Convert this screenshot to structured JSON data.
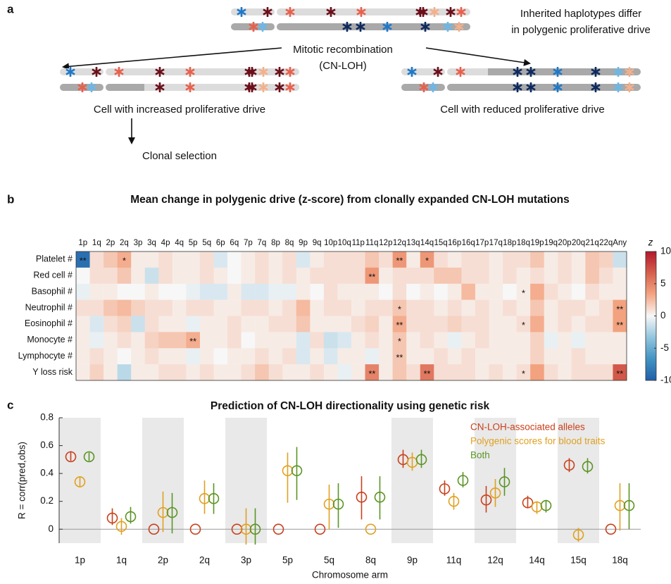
{
  "panel_labels": [
    "a",
    "b",
    "c"
  ],
  "diagram": {
    "haplotype_note": [
      "Inherited haplotypes differ",
      "in polygenic proliferative drive"
    ],
    "recombination": [
      "Mitotic recombination",
      "(CN-LOH)"
    ],
    "left_cell": "Cell with increased proliferative drive",
    "right_cell": "Cell with reduced proliferative drive",
    "selection": "Clonal selection"
  },
  "chart_data": [
    {
      "type": "heatmap",
      "title": "Mean change in polygenic drive (z-score) from clonally expanded CN-LOH mutations",
      "categories": [
        "1p",
        "1q",
        "2p",
        "2q",
        "3p",
        "3q",
        "4p",
        "4q",
        "5p",
        "5q",
        "6p",
        "6q",
        "7p",
        "7q",
        "8p",
        "8q",
        "9p",
        "9q",
        "10p",
        "10q",
        "11p",
        "11q",
        "12p",
        "12q",
        "13q",
        "14q",
        "15q",
        "16p",
        "16q",
        "17p",
        "17q",
        "18p",
        "18q",
        "19p",
        "19q",
        "20p",
        "20q",
        "21q",
        "22q",
        "Any"
      ],
      "series": [
        {
          "name": "Platelet #",
          "values": [
            -9,
            1,
            2,
            3,
            0.5,
            0.5,
            1,
            0.5,
            0.5,
            1,
            -1,
            0,
            0.5,
            1,
            0.5,
            1,
            -1,
            0.5,
            1,
            1,
            1,
            2,
            1,
            4,
            0.5,
            4,
            1,
            0.5,
            1,
            1,
            0.5,
            1,
            1,
            2,
            0.5,
            1,
            0.5,
            2,
            1.5,
            -1.5
          ],
          "value_labels": [
            "**",
            null,
            null,
            "*",
            null,
            null,
            null,
            null,
            null,
            null,
            null,
            null,
            null,
            null,
            null,
            null,
            null,
            null,
            null,
            null,
            null,
            null,
            null,
            "**",
            null,
            "*",
            null,
            null,
            null,
            null,
            null,
            null,
            null,
            null,
            null,
            null,
            null,
            null,
            null,
            null
          ]
        },
        {
          "name": "Red cell #",
          "values": [
            0,
            1,
            1,
            2,
            0.5,
            -1.5,
            1,
            0.5,
            0.5,
            1,
            0.5,
            0,
            0.5,
            1,
            0.5,
            1,
            0.5,
            1,
            1,
            1,
            1,
            4,
            0.5,
            1,
            1,
            1,
            2,
            2,
            1,
            1,
            0.5,
            1,
            0.5,
            1,
            0.5,
            1,
            0.5,
            2,
            1,
            0.5
          ],
          "value_labels": [
            null,
            null,
            null,
            null,
            null,
            null,
            null,
            null,
            null,
            null,
            null,
            null,
            null,
            null,
            null,
            null,
            null,
            null,
            null,
            null,
            null,
            "**",
            null,
            null,
            null,
            null,
            null,
            null,
            null,
            null,
            null,
            null,
            null,
            null,
            null,
            null,
            null,
            null,
            null,
            null
          ]
        },
        {
          "name": "Basophil #",
          "values": [
            -0.5,
            0.5,
            0.5,
            0,
            0,
            0.5,
            0,
            0,
            -0.5,
            -1,
            -1,
            0.5,
            -1,
            -1,
            -0.5,
            -0.5,
            0.5,
            0,
            1,
            0.5,
            0.5,
            0.5,
            0,
            1,
            0,
            0.5,
            0,
            0.5,
            2.5,
            0.5,
            0.5,
            0,
            0.5,
            3,
            1,
            0.5,
            0,
            1,
            0.5,
            0.5
          ],
          "value_labels": [
            null,
            null,
            null,
            null,
            null,
            null,
            null,
            null,
            null,
            null,
            null,
            null,
            null,
            null,
            null,
            null,
            null,
            null,
            null,
            null,
            null,
            null,
            null,
            null,
            null,
            null,
            null,
            null,
            null,
            null,
            null,
            null,
            "*",
            null,
            null,
            null,
            null,
            null,
            null,
            null
          ]
        },
        {
          "name": "Neutrophil #",
          "values": [
            1,
            1,
            2,
            2.5,
            1.5,
            1,
            1,
            0.5,
            1,
            1,
            0.5,
            0.5,
            1,
            1,
            0.5,
            1,
            2.5,
            0.5,
            1,
            1,
            0.5,
            1,
            1,
            2,
            1,
            1,
            0.5,
            1,
            0.5,
            1,
            0.5,
            1,
            0.5,
            2,
            0.5,
            1,
            1,
            0.5,
            1,
            3.5
          ],
          "value_labels": [
            null,
            null,
            null,
            null,
            null,
            null,
            null,
            null,
            null,
            null,
            null,
            null,
            null,
            null,
            null,
            null,
            null,
            null,
            null,
            null,
            null,
            null,
            null,
            "*",
            null,
            null,
            null,
            null,
            null,
            null,
            null,
            null,
            null,
            null,
            null,
            null,
            null,
            null,
            null,
            "**"
          ]
        },
        {
          "name": "Eosinophil #",
          "values": [
            0.5,
            -1,
            1,
            1.5,
            -1.5,
            1,
            0.5,
            0.5,
            -0.5,
            0.5,
            0.5,
            1,
            0.5,
            0.5,
            1,
            1,
            2,
            0.5,
            0.5,
            0.5,
            1,
            1.5,
            0.5,
            3,
            1,
            1,
            1,
            1.5,
            1,
            1,
            0.5,
            0.5,
            1,
            3,
            0.5,
            1,
            0.5,
            1,
            1,
            3.5
          ],
          "value_labels": [
            null,
            null,
            null,
            null,
            null,
            null,
            null,
            null,
            null,
            null,
            null,
            null,
            null,
            null,
            null,
            null,
            null,
            null,
            null,
            null,
            null,
            null,
            null,
            "**",
            null,
            null,
            null,
            null,
            null,
            null,
            null,
            null,
            "*",
            null,
            null,
            null,
            null,
            null,
            null,
            "**"
          ]
        },
        {
          "name": "Monocyte #",
          "values": [
            0.5,
            -0.5,
            0.5,
            1,
            0.5,
            1.5,
            2,
            2,
            3,
            0.5,
            0.5,
            1,
            0,
            0.5,
            0.5,
            0.5,
            -1,
            1,
            -1.5,
            -1,
            0.5,
            1,
            0.5,
            2,
            0.5,
            1,
            0.5,
            -0.5,
            0.5,
            1,
            0.5,
            0.5,
            0.5,
            1.5,
            -0.5,
            0.5,
            -0.5,
            0.5,
            0.5,
            0.5
          ],
          "value_labels": [
            null,
            null,
            null,
            null,
            null,
            null,
            null,
            null,
            "**",
            null,
            null,
            null,
            null,
            null,
            null,
            null,
            null,
            null,
            null,
            null,
            null,
            null,
            null,
            "*",
            null,
            null,
            null,
            null,
            null,
            null,
            null,
            null,
            null,
            null,
            null,
            null,
            null,
            null,
            null,
            null
          ]
        },
        {
          "name": "Lymphocyte #",
          "values": [
            0.5,
            1,
            0.5,
            0,
            0.5,
            1,
            0.5,
            0.5,
            -0.5,
            0.5,
            0,
            0.5,
            0.5,
            1,
            0.5,
            1,
            -1,
            0.5,
            -1,
            0.5,
            0.5,
            -0.5,
            0.5,
            2,
            0.5,
            0.5,
            1,
            0.5,
            1,
            0.5,
            0.5,
            0.5,
            0.5,
            1.5,
            0.5,
            0.5,
            1,
            0.5,
            0.5,
            0.5
          ],
          "value_labels": [
            null,
            null,
            null,
            null,
            null,
            null,
            null,
            null,
            null,
            null,
            null,
            null,
            null,
            null,
            null,
            null,
            null,
            null,
            null,
            null,
            null,
            null,
            null,
            "**",
            null,
            null,
            null,
            null,
            null,
            null,
            null,
            null,
            null,
            null,
            null,
            null,
            null,
            null,
            null,
            null
          ]
        },
        {
          "name": "Y loss risk",
          "values": [
            0.5,
            1.5,
            0.5,
            -2,
            0.5,
            0.5,
            1,
            1,
            0.5,
            1,
            0.5,
            0.5,
            1,
            2,
            1,
            0.5,
            0.5,
            1,
            0.5,
            -0.5,
            0.5,
            5,
            0.5,
            2,
            1,
            5.5,
            1,
            1,
            1,
            0.5,
            1,
            0.5,
            1,
            3.5,
            1,
            0.5,
            1,
            1,
            1,
            7
          ],
          "value_labels": [
            null,
            null,
            null,
            null,
            null,
            null,
            null,
            null,
            null,
            null,
            null,
            null,
            null,
            null,
            null,
            null,
            null,
            null,
            null,
            null,
            null,
            "**",
            null,
            null,
            null,
            "**",
            null,
            null,
            null,
            null,
            null,
            null,
            "*",
            null,
            null,
            null,
            null,
            null,
            null,
            "**"
          ]
        }
      ],
      "zlabel": "z",
      "zlim": [
        -10,
        10
      ],
      "zticks": [
        -10,
        -5,
        0,
        5,
        10
      ],
      "colormap": [
        "#1f5fa8",
        "#4393c3",
        "#92c5de",
        "#f7f7f7",
        "#f4a582",
        "#d6604d",
        "#b2182b"
      ]
    },
    {
      "type": "errorbar",
      "title": "Prediction of CN-LOH directionality using genetic risk",
      "xlabel": "Chromosome arm",
      "ylabel": "R = corr(pred,obs)",
      "categories": [
        "1p",
        "1q",
        "2p",
        "2q",
        "3p",
        "5p",
        "5q",
        "8q",
        "9p",
        "11q",
        "12q",
        "14q",
        "15q",
        "18q"
      ],
      "series": [
        {
          "name": "CN-LOH-associated alleles",
          "color": "#c8401c",
          "values": [
            0.52,
            0.08,
            0,
            0,
            0,
            0,
            0,
            0.23,
            0.5,
            0.29,
            0.21,
            0.19,
            0.46,
            0
          ],
          "lower": [
            0.49,
            0.03,
            null,
            null,
            null,
            null,
            null,
            0.07,
            0.44,
            0.24,
            0.12,
            0.15,
            0.41,
            null
          ],
          "upper": [
            0.56,
            0.15,
            null,
            null,
            null,
            null,
            null,
            0.38,
            0.57,
            0.35,
            0.31,
            0.24,
            0.51,
            null
          ]
        },
        {
          "name": "Polygenic scores for blood traits",
          "color": "#e0a020",
          "values": [
            0.34,
            0.02,
            0.12,
            0.22,
            0,
            0.42,
            0.18,
            0,
            0.48,
            0.2,
            0.26,
            0.16,
            -0.04,
            0.17
          ],
          "lower": [
            0.3,
            -0.04,
            -0.02,
            0.11,
            -0.11,
            0.19,
            0.0,
            null,
            0.42,
            0.14,
            0.16,
            0.11,
            -0.09,
            -0.01
          ],
          "upper": [
            0.38,
            0.08,
            0.27,
            0.35,
            0.15,
            0.55,
            0.32,
            null,
            0.55,
            0.26,
            0.36,
            0.2,
            0.01,
            0.33
          ]
        },
        {
          "name": "Both",
          "color": "#5a9424",
          "values": [
            0.52,
            0.09,
            0.12,
            0.22,
            0,
            0.42,
            0.18,
            0.23,
            0.5,
            0.35,
            0.34,
            0.17,
            0.45,
            0.17
          ],
          "lower": [
            0.49,
            0.04,
            -0.03,
            0.11,
            -0.11,
            0.21,
            0.01,
            0.07,
            0.44,
            0.3,
            0.24,
            0.12,
            0.4,
            0.0
          ],
          "upper": [
            0.55,
            0.16,
            0.26,
            0.33,
            0.15,
            0.59,
            0.33,
            0.38,
            0.57,
            0.41,
            0.44,
            0.21,
            0.51,
            0.33
          ]
        }
      ],
      "ylim": [
        -0.1,
        0.8
      ],
      "yticks": [
        0,
        0.2,
        0.4,
        0.6,
        0.8
      ],
      "hline": 0,
      "shaded_categories": [
        "1p",
        "2p",
        "3p",
        "9p",
        "12q",
        "15q"
      ],
      "legend": "upper right"
    }
  ]
}
